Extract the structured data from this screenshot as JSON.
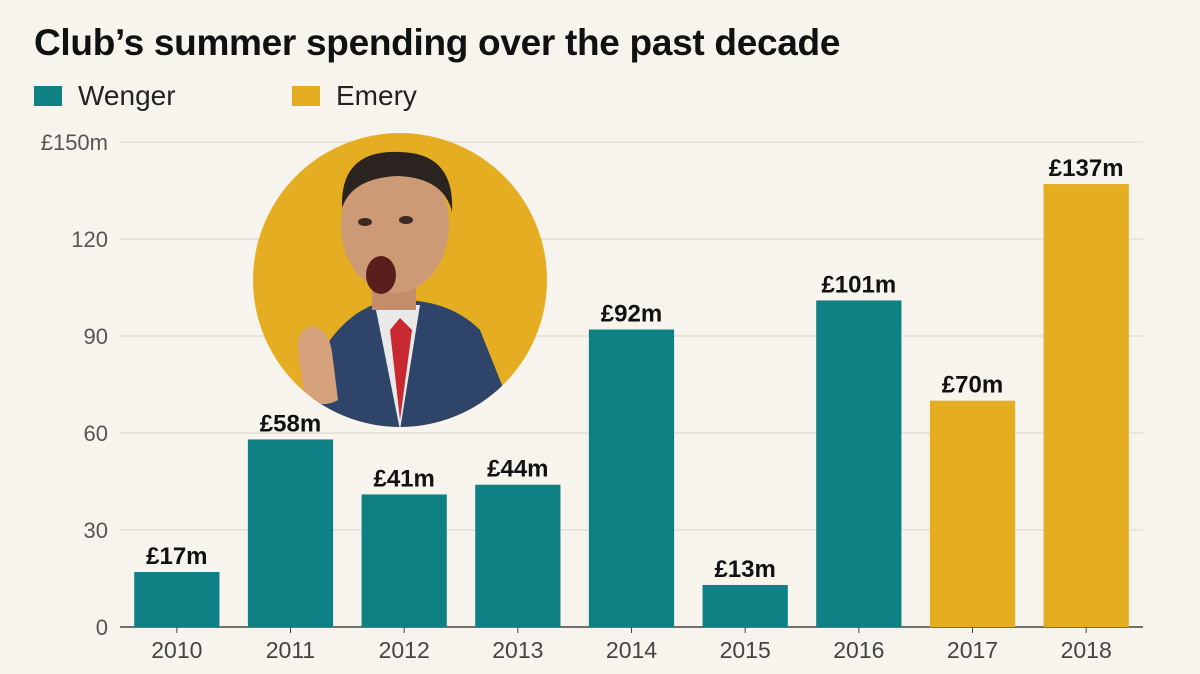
{
  "title": "Club’s summer spending over the past decade",
  "legend": [
    {
      "label": "Wenger",
      "color": "#0f8185"
    },
    {
      "label": "Emery",
      "color": "#e4ad22"
    }
  ],
  "chart_data": {
    "type": "bar",
    "title": "Club’s summer spending over the past decade",
    "categories": [
      "2010",
      "2011",
      "2012",
      "2013",
      "2014",
      "2015",
      "2016",
      "2017",
      "2018"
    ],
    "values": [
      17,
      58,
      41,
      44,
      92,
      13,
      101,
      70,
      137
    ],
    "value_labels": [
      "£17m",
      "£58m",
      "£41m",
      "£44m",
      "£92m",
      "£13m",
      "£101m",
      "£70m",
      "£137m"
    ],
    "manager": [
      "Wenger",
      "Wenger",
      "Wenger",
      "Wenger",
      "Wenger",
      "Wenger",
      "Wenger",
      "Emery",
      "Emery"
    ],
    "yticks": [
      0,
      30,
      60,
      90,
      120,
      150
    ],
    "ytick_labels": [
      "0",
      "30",
      "60",
      "90",
      "120",
      "£150m"
    ],
    "ylim": [
      0,
      150
    ],
    "xlabel": "",
    "ylabel": "",
    "grid": true,
    "legend_position": "top-left",
    "colors": {
      "Wenger": "#0f8185",
      "Emery": "#e4ad22",
      "grid": "#d9d4c9",
      "axis": "#444444"
    }
  }
}
